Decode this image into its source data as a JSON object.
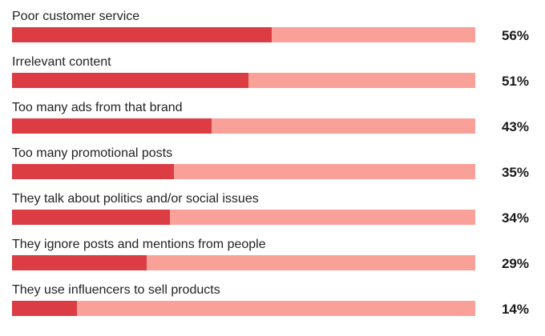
{
  "colors": {
    "fill": "#dc3c43",
    "track": "#f9a098",
    "label": "#222222",
    "value": "#1a1a1a"
  },
  "chart_data": {
    "type": "bar",
    "orientation": "horizontal",
    "categories": [
      "Poor customer service",
      "Irrelevant content",
      "Too many ads from that brand",
      "Too many promotional posts",
      "They talk about politics and/or social issues",
      "They ignore posts and mentions from people",
      "They use influencers to sell products"
    ],
    "values": [
      56,
      51,
      43,
      35,
      34,
      29,
      14
    ],
    "value_labels": [
      "56%",
      "51%",
      "43%",
      "35%",
      "34%",
      "29%",
      "14%"
    ],
    "xlim": [
      0,
      100
    ],
    "grid": false,
    "legend": "none"
  }
}
